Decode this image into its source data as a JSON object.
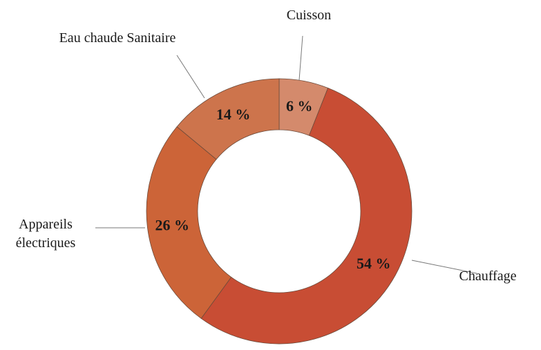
{
  "chart_data": {
    "type": "pie",
    "variant": "donut",
    "title": "",
    "slices": [
      {
        "label": "Chauffage",
        "label_lines": [
          "Chauffage"
        ],
        "value": 54,
        "value_label": "54 %",
        "color": "#c84d34"
      },
      {
        "label": "Appareils électriques",
        "label_lines": [
          "Appareils",
          "électriques"
        ],
        "value": 26,
        "value_label": "26 %",
        "color": "#cc6438"
      },
      {
        "label": "Eau chaude Sanitaire",
        "label_lines": [
          "Eau chaude Sanitaire"
        ],
        "value": 14,
        "value_label": "14 %",
        "color": "#cd744c"
      },
      {
        "label": "Cuisson",
        "label_lines": [
          "Cuisson"
        ],
        "value": 6,
        "value_label": "6 %",
        "color": "#d48a6c"
      }
    ],
    "legend": "none",
    "start": "top",
    "direction": "clockwise-from-cuisson"
  }
}
